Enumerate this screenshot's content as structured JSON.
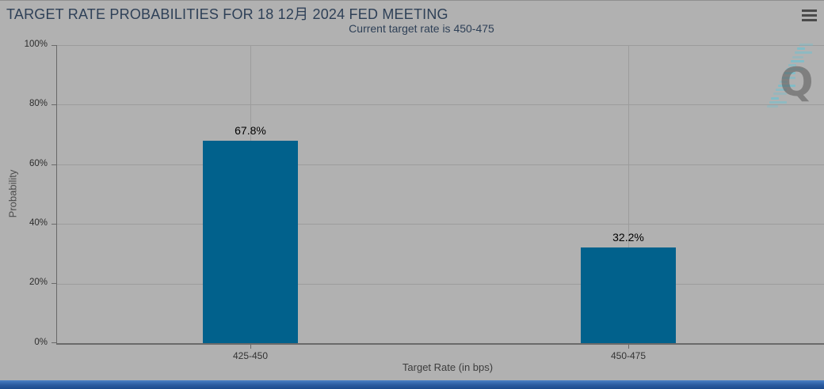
{
  "header": {
    "title": "TARGET RATE PROBABILITIES FOR 18 12月 2024 FED MEETING",
    "menu_icon": "hamburger-menu"
  },
  "chart_data": {
    "type": "bar",
    "title": "TARGET RATE PROBABILITIES FOR 18 12月 2024 FED MEETING",
    "subtitle": "Current target rate is 450-475",
    "categories": [
      "425-450",
      "450-475"
    ],
    "values": [
      67.8,
      32.2
    ],
    "value_labels": [
      "67.8%",
      "32.2%"
    ],
    "xlabel": "Target Rate (in bps)",
    "ylabel": "Probability",
    "ylim": [
      0,
      100
    ],
    "yticks": [
      "0%",
      "20%",
      "40%",
      "60%",
      "80%",
      "100%"
    ],
    "grid": true,
    "legend": false,
    "bar_color": "#01618c"
  },
  "watermark": {
    "letter": "Q"
  },
  "colors": {
    "background": "#b1b1b1",
    "bar": "#01618c",
    "title_text": "#2e4057",
    "watermark_teal": "#63c3d5",
    "footer_bar": "#2a5a9e"
  }
}
